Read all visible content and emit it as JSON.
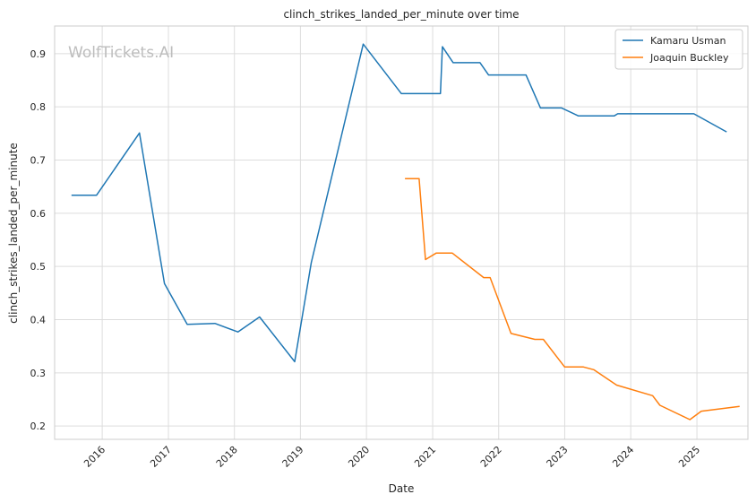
{
  "chart_data": {
    "type": "line",
    "title": "clinch_strikes_landed_per_minute over time",
    "xlabel": "Date",
    "ylabel": "clinch_strikes_landed_per_minute",
    "watermark": "WolfTickets.AI",
    "x_ticks": [
      "2016",
      "2017",
      "2018",
      "2019",
      "2020",
      "2021",
      "2022",
      "2023",
      "2024",
      "2025"
    ],
    "y_ticks": [
      0.2,
      0.3,
      0.4,
      0.5,
      0.6,
      0.7,
      0.8,
      0.9
    ],
    "xlim": [
      "2015-04-13",
      "2025-10-10"
    ],
    "ylim": [
      0.175,
      0.952
    ],
    "grid": true,
    "legend_position": "top-right",
    "series": [
      {
        "name": "Kamaru Usman",
        "color": "#1f77b4",
        "points": [
          [
            "2015-07-15",
            0.634
          ],
          [
            "2015-12-01",
            0.634
          ],
          [
            "2016-07-25",
            0.751
          ],
          [
            "2016-12-10",
            0.468
          ],
          [
            "2017-04-15",
            0.391
          ],
          [
            "2017-09-15",
            0.393
          ],
          [
            "2018-01-20",
            0.377
          ],
          [
            "2018-05-20",
            0.405
          ],
          [
            "2018-11-30",
            0.321
          ],
          [
            "2019-03-02",
            0.507
          ],
          [
            "2019-12-14",
            0.918
          ],
          [
            "2020-07-12",
            0.825
          ],
          [
            "2021-02-13",
            0.825
          ],
          [
            "2021-02-24",
            0.913
          ],
          [
            "2021-04-24",
            0.883
          ],
          [
            "2021-09-20",
            0.883
          ],
          [
            "2021-11-06",
            0.86
          ],
          [
            "2022-06-01",
            0.86
          ],
          [
            "2022-08-20",
            0.798
          ],
          [
            "2022-12-15",
            0.798
          ],
          [
            "2023-03-18",
            0.783
          ],
          [
            "2023-10-01",
            0.783
          ],
          [
            "2023-10-21",
            0.787
          ],
          [
            "2024-12-15",
            0.787
          ],
          [
            "2025-06-14",
            0.753
          ]
        ]
      },
      {
        "name": "Joaquin Buckley",
        "color": "#ff7f0e",
        "points": [
          [
            "2020-08-01",
            0.665
          ],
          [
            "2020-10-18",
            0.665
          ],
          [
            "2020-11-22",
            0.513
          ],
          [
            "2021-01-20",
            0.525
          ],
          [
            "2021-04-20",
            0.525
          ],
          [
            "2021-10-10",
            0.479
          ],
          [
            "2021-11-15",
            0.479
          ],
          [
            "2022-03-10",
            0.374
          ],
          [
            "2022-07-20",
            0.363
          ],
          [
            "2022-09-05",
            0.363
          ],
          [
            "2023-01-01",
            0.311
          ],
          [
            "2023-04-15",
            0.311
          ],
          [
            "2023-06-10",
            0.306
          ],
          [
            "2023-10-15",
            0.277
          ],
          [
            "2024-05-01",
            0.257
          ],
          [
            "2024-06-10",
            0.239
          ],
          [
            "2024-11-23",
            0.212
          ],
          [
            "2025-01-25",
            0.228
          ],
          [
            "2025-08-25",
            0.237
          ]
        ]
      }
    ]
  }
}
